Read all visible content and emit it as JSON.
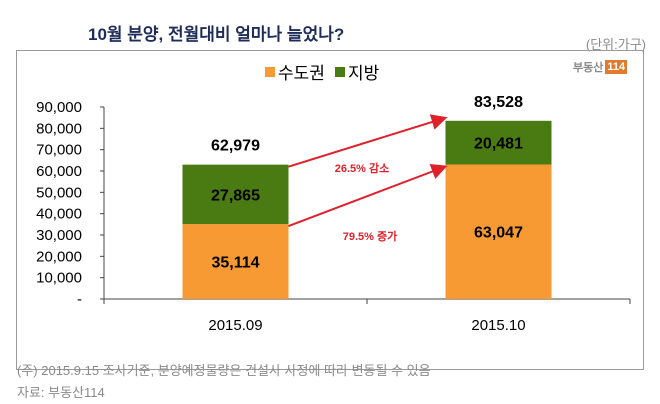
{
  "header": {
    "title": "10월 분양, 전월대비 얼마나 늘었나?",
    "unit": "(단위:가구)"
  },
  "logo": {
    "text": "부동산",
    "badge": "114"
  },
  "chart_data": {
    "type": "bar",
    "stacked": true,
    "categories": [
      "2015.09",
      "2015.10"
    ],
    "series": [
      {
        "name": "수도권",
        "color": "#f79a34",
        "values": [
          35114,
          63047
        ],
        "labels": [
          "35,114",
          "63,047"
        ]
      },
      {
        "name": "지방",
        "color": "#4a7a12",
        "values": [
          27865,
          20481
        ],
        "labels": [
          "27,865",
          "20,481"
        ]
      }
    ],
    "totals": [
      62979,
      83528
    ],
    "total_labels": [
      "62,979",
      "83,528"
    ],
    "ylim": [
      0,
      90000
    ],
    "yticks": [
      0,
      10000,
      20000,
      30000,
      40000,
      50000,
      60000,
      70000,
      80000,
      90000
    ],
    "ytick_labels": [
      "-",
      "10,000",
      "20,000",
      "30,000",
      "40,000",
      "50,000",
      "60,000",
      "70,000",
      "80,000",
      "90,000"
    ],
    "legend_position": "top-center",
    "grid": false,
    "annotations": [
      {
        "text": "26.5% 감소",
        "color": "#e0202a"
      },
      {
        "text": "79.5% 증가",
        "color": "#e0202a"
      }
    ]
  },
  "footer": {
    "note": "(주) 2015.9.15 조사기준, 분양예정물량은 건설사 사정에 따라 변동될 수 있음",
    "source": "자료: 부동산114"
  }
}
